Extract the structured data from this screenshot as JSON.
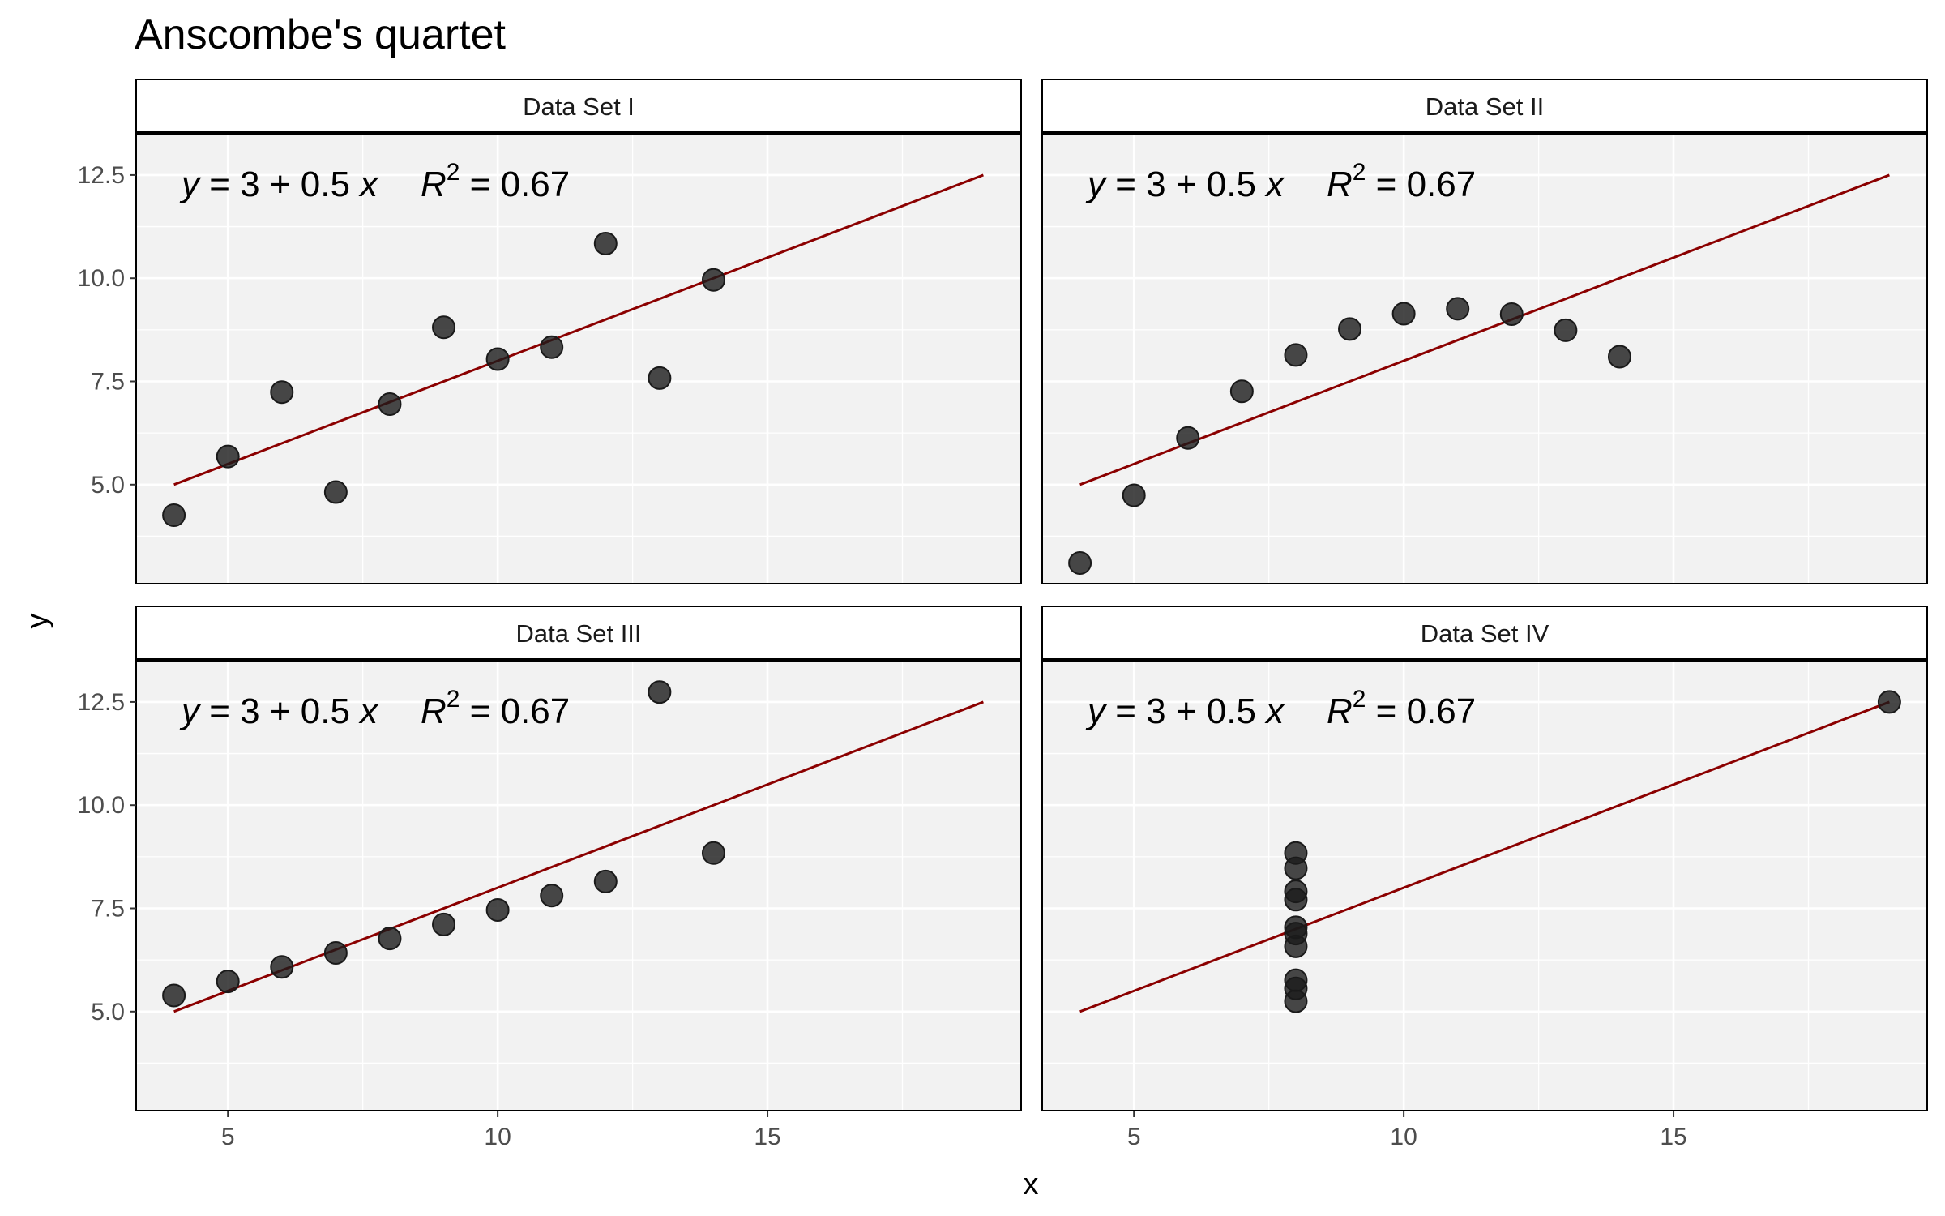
{
  "chart_data": {
    "type": "scatter",
    "title": "Anscombe's quartet",
    "xlabel": "x",
    "ylabel": "y",
    "xlim": [
      3.3,
      19.7
    ],
    "ylim": [
      2.6,
      13.5
    ],
    "x_ticks": [
      5,
      10,
      15
    ],
    "x_tick_labels": [
      "5",
      "10",
      "15"
    ],
    "y_ticks": [
      5,
      7.5,
      10,
      12.5
    ],
    "y_tick_labels": [
      "5.0",
      "7.5",
      "10.0",
      "12.5"
    ],
    "grid": true,
    "legend": "none",
    "colors": {
      "panel_background": "#f2f2f2",
      "grid": "#ffffff",
      "points": "#1a1a1a",
      "fit_line": "#8b0000",
      "border": "#000000"
    },
    "panels": [
      {
        "name": "Data Set I",
        "annotation": {
          "y_var": "y",
          "intercept": "3",
          "slope": "0.5",
          "x_var": "x",
          "r_label": "R",
          "r_exp": "2",
          "r_value": "0.67"
        },
        "fit": {
          "intercept": 3,
          "slope": 0.5,
          "x_range": [
            4,
            19
          ]
        },
        "points": [
          {
            "x": 10,
            "y": 8.04
          },
          {
            "x": 8,
            "y": 6.95
          },
          {
            "x": 13,
            "y": 7.58
          },
          {
            "x": 9,
            "y": 8.81
          },
          {
            "x": 11,
            "y": 8.33
          },
          {
            "x": 14,
            "y": 9.96
          },
          {
            "x": 6,
            "y": 7.24
          },
          {
            "x": 4,
            "y": 4.26
          },
          {
            "x": 12,
            "y": 10.84
          },
          {
            "x": 7,
            "y": 4.82
          },
          {
            "x": 5,
            "y": 5.68
          }
        ]
      },
      {
        "name": "Data Set II",
        "annotation": {
          "y_var": "y",
          "intercept": "3",
          "slope": "0.5",
          "x_var": "x",
          "r_label": "R",
          "r_exp": "2",
          "r_value": "0.67"
        },
        "fit": {
          "intercept": 3,
          "slope": 0.5,
          "x_range": [
            4,
            19
          ]
        },
        "points": [
          {
            "x": 10,
            "y": 9.14
          },
          {
            "x": 8,
            "y": 8.14
          },
          {
            "x": 13,
            "y": 8.74
          },
          {
            "x": 9,
            "y": 8.77
          },
          {
            "x": 11,
            "y": 9.26
          },
          {
            "x": 14,
            "y": 8.1
          },
          {
            "x": 6,
            "y": 6.13
          },
          {
            "x": 4,
            "y": 3.1
          },
          {
            "x": 12,
            "y": 9.13
          },
          {
            "x": 7,
            "y": 7.26
          },
          {
            "x": 5,
            "y": 4.74
          }
        ]
      },
      {
        "name": "Data Set III",
        "annotation": {
          "y_var": "y",
          "intercept": "3",
          "slope": "0.5",
          "x_var": "x",
          "r_label": "R",
          "r_exp": "2",
          "r_value": "0.67"
        },
        "fit": {
          "intercept": 3,
          "slope": 0.5,
          "x_range": [
            4,
            19
          ]
        },
        "points": [
          {
            "x": 10,
            "y": 7.46
          },
          {
            "x": 8,
            "y": 6.77
          },
          {
            "x": 13,
            "y": 12.74
          },
          {
            "x": 9,
            "y": 7.11
          },
          {
            "x": 11,
            "y": 7.81
          },
          {
            "x": 14,
            "y": 8.84
          },
          {
            "x": 6,
            "y": 6.08
          },
          {
            "x": 4,
            "y": 5.39
          },
          {
            "x": 12,
            "y": 8.15
          },
          {
            "x": 7,
            "y": 6.42
          },
          {
            "x": 5,
            "y": 5.73
          }
        ]
      },
      {
        "name": "Data Set IV",
        "annotation": {
          "y_var": "y",
          "intercept": "3",
          "slope": "0.5",
          "x_var": "x",
          "r_label": "R",
          "r_exp": "2",
          "r_value": "0.67"
        },
        "fit": {
          "intercept": 3,
          "slope": 0.5,
          "x_range": [
            4,
            19
          ]
        },
        "points": [
          {
            "x": 8,
            "y": 6.58
          },
          {
            "x": 8,
            "y": 5.76
          },
          {
            "x": 8,
            "y": 7.71
          },
          {
            "x": 8,
            "y": 8.84
          },
          {
            "x": 8,
            "y": 8.47
          },
          {
            "x": 8,
            "y": 7.04
          },
          {
            "x": 8,
            "y": 5.25
          },
          {
            "x": 19,
            "y": 12.5
          },
          {
            "x": 8,
            "y": 5.56
          },
          {
            "x": 8,
            "y": 7.91
          },
          {
            "x": 8,
            "y": 6.89
          }
        ]
      }
    ]
  }
}
